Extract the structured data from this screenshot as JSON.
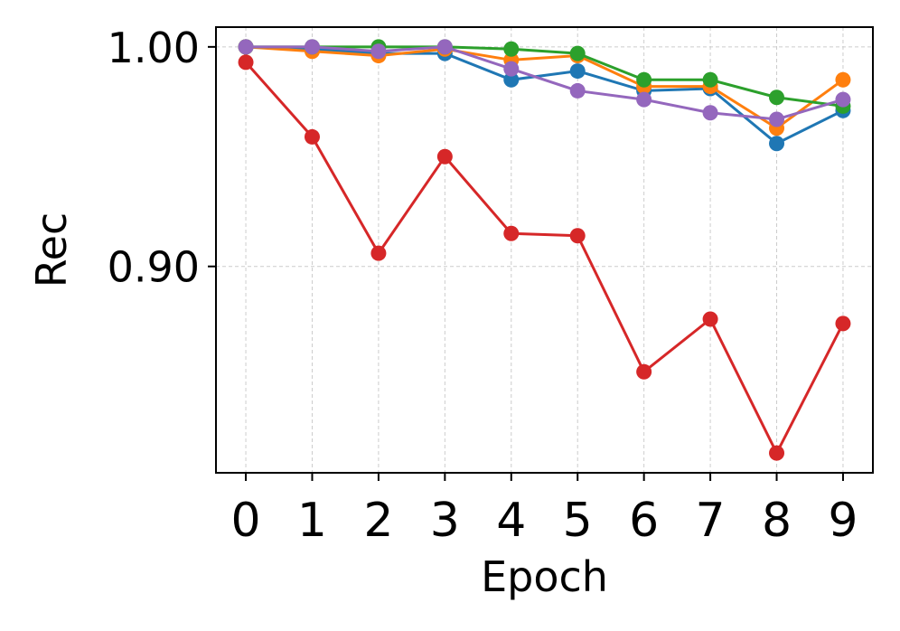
{
  "chart_data": {
    "type": "line",
    "title": "",
    "xlabel": "Epoch",
    "ylabel": "Rec",
    "x": [
      0,
      1,
      2,
      3,
      4,
      5,
      6,
      7,
      8,
      9
    ],
    "xticks": [
      "0",
      "1",
      "2",
      "3",
      "4",
      "5",
      "6",
      "7",
      "8",
      "9"
    ],
    "yticks": [
      "0.90",
      "1.00"
    ],
    "ytick_values": [
      0.9,
      1.0
    ],
    "xlim": [
      -0.45,
      9.45
    ],
    "ylim": [
      0.806,
      1.009
    ],
    "grid": true,
    "series": [
      {
        "color": "#1f77b4",
        "values": [
          1.0,
          0.999,
          0.997,
          0.997,
          0.985,
          0.989,
          0.98,
          0.981,
          0.956,
          0.971
        ]
      },
      {
        "color": "#ff7f0e",
        "values": [
          1.0,
          0.998,
          0.996,
          0.999,
          0.994,
          0.996,
          0.982,
          0.982,
          0.963,
          0.985
        ]
      },
      {
        "color": "#2ca02c",
        "values": [
          1.0,
          1.0,
          1.0,
          1.0,
          0.999,
          0.997,
          0.985,
          0.985,
          0.977,
          0.973
        ]
      },
      {
        "color": "#d62728",
        "values": [
          0.993,
          0.959,
          0.906,
          0.95,
          0.915,
          0.914,
          0.852,
          0.876,
          0.815,
          0.874
        ]
      },
      {
        "color": "#9467bd",
        "values": [
          1.0,
          1.0,
          0.998,
          1.0,
          0.99,
          0.98,
          0.976,
          0.97,
          0.967,
          0.976
        ]
      }
    ]
  }
}
